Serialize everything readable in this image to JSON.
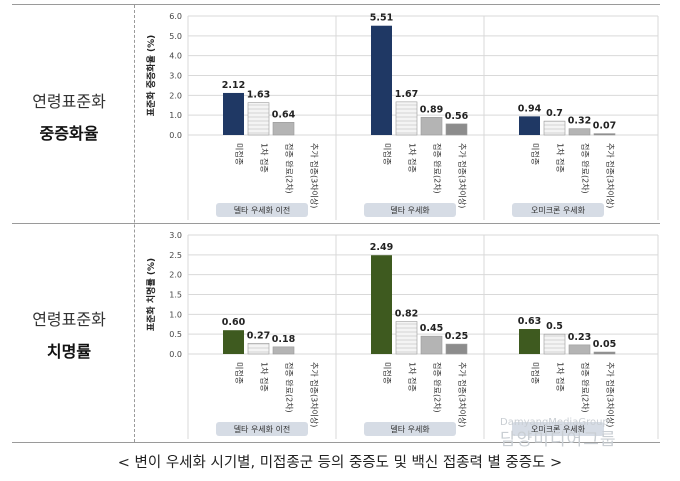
{
  "caption": "< 변이 우세화 시기별, 미접종군 등의 중증도 및 백신 접종력 별 중증도 >",
  "watermark": {
    "line1": "DamyangMediaGroup",
    "line2": "담양미디어그룹"
  },
  "panels": [
    {
      "row_label_1": "연령표준화",
      "row_label_2": "중증화율"
    },
    {
      "row_label_1": "연령표준화",
      "row_label_2": "치명률"
    }
  ],
  "colors": {
    "severe_unvaccinated": "#1f3864",
    "fatal_unvaccinated": "#3e5a1f",
    "first_dose": "#e4e4e4",
    "completed": "#b4b4b4",
    "additional": "#8c8c8c",
    "period_label_bg": "#d6dce5",
    "grid": "#d9d9d9"
  },
  "chart_data": [
    {
      "type": "bar",
      "ylabel": "표준화 중증화율 (%)",
      "ylim": [
        0,
        6.0
      ],
      "yticks": [
        "0.0",
        "1.0",
        "2.0",
        "3.0",
        "4.0",
        "5.0",
        "6.0"
      ],
      "grid": true,
      "groups": [
        {
          "label": "델타 우세화 이전",
          "categories": [
            "미접종",
            "1차 접종",
            "접종 완료(2차)",
            "추가 접종(3차이상)"
          ],
          "values": [
            2.12,
            1.63,
            0.64,
            null
          ],
          "value_labels": [
            "2.12",
            "1.63",
            "0.64",
            ""
          ]
        },
        {
          "label": "델타 우세화",
          "categories": [
            "미접종",
            "1차 접종",
            "접종 완료(2차)",
            "추가 접종(3차이상)"
          ],
          "values": [
            5.51,
            1.67,
            0.89,
            0.56
          ],
          "value_labels": [
            "5.51",
            "1.67",
            "0.89",
            "0.56"
          ]
        },
        {
          "label": "오미크론 우세화",
          "categories": [
            "미접종",
            "1차 접종",
            "접종 완료(2차)",
            "추가 접종(3차이상)"
          ],
          "values": [
            0.94,
            0.7,
            0.32,
            0.07
          ],
          "value_labels": [
            "0.94",
            "0.7",
            "0.32",
            "0.07"
          ]
        }
      ]
    },
    {
      "type": "bar",
      "ylabel": "표준화 치명률 (%)",
      "ylim": [
        0,
        3.0
      ],
      "yticks": [
        "0.0",
        "0.5",
        "1.0",
        "1.5",
        "2.0",
        "2.5",
        "3.0"
      ],
      "grid": true,
      "groups": [
        {
          "label": "델타 우세화 이전",
          "categories": [
            "미접종",
            "1차 접종",
            "접종 완료(2차)",
            "추가 접종(3차이상)"
          ],
          "values": [
            0.6,
            0.27,
            0.18,
            null
          ],
          "value_labels": [
            "0.60",
            "0.27",
            "0.18",
            ""
          ]
        },
        {
          "label": "델타 우세화",
          "categories": [
            "미접종",
            "1차 접종",
            "접종 완료(2차)",
            "추가 접종(3차이상)"
          ],
          "values": [
            2.49,
            0.82,
            0.45,
            0.25
          ],
          "value_labels": [
            "2.49",
            "0.82",
            "0.45",
            "0.25"
          ]
        },
        {
          "label": "오미크론 우세화",
          "categories": [
            "미접종",
            "1차 접종",
            "접종 완료(2차)",
            "추가 접종(3차이상)"
          ],
          "values": [
            0.63,
            0.5,
            0.23,
            0.05
          ],
          "value_labels": [
            "0.63",
            "0.5",
            "0.23",
            "0.05"
          ]
        }
      ]
    }
  ]
}
